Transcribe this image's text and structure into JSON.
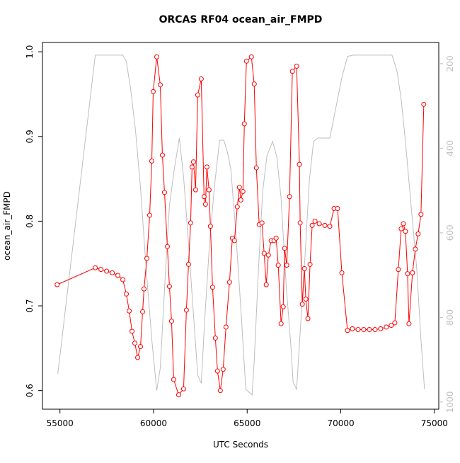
{
  "chart_data": {
    "type": "line",
    "title": "ORCAS RF04 ocean_air_FMPD",
    "x_label": "UTC Seconds",
    "y_label": "ocean_air_FMPD",
    "xlim": [
      54066,
      75234
    ],
    "xticks": [
      55000,
      60000,
      65000,
      70000,
      75000
    ],
    "ylim": [
      0.578,
      1.011
    ],
    "yticks": [
      0.6,
      0.7,
      0.8,
      0.9,
      {
        "value": 1,
        "label": "1.0"
      }
    ],
    "y2lim": [
      1017,
      150
    ],
    "y2ticks": [
      200,
      400,
      600,
      800,
      1000
    ],
    "series": [
      {
        "color": "#ff0000",
        "marker": "circle",
        "x": [
          54850,
          56887,
          57189,
          57491,
          57792,
          58094,
          58358,
          58547,
          58698,
          58849,
          59000,
          59151,
          59302,
          59415,
          59491,
          59642,
          59792,
          59906,
          59981,
          60170,
          60358,
          60472,
          60585,
          60736,
          60849,
          60962,
          61075,
          61340,
          61604,
          61755,
          61868,
          61981,
          62057,
          62132,
          62245,
          62358,
          62547,
          62698,
          62774,
          62849,
          62962,
          63038,
          63151,
          63302,
          63415,
          63566,
          63717,
          63868,
          64057,
          64208,
          64321,
          64472,
          64585,
          64660,
          64774,
          64849,
          64962,
          65226,
          65377,
          65491,
          65642,
          65792,
          65906,
          66019,
          66132,
          66283,
          66434,
          66547,
          66660,
          66811,
          66925,
          67000,
          67113,
          67264,
          67415,
          67642,
          67792,
          67830,
          67943,
          68057,
          68132,
          68245,
          68358,
          68472,
          68623,
          68849,
          69151,
          69415,
          69642,
          69830,
          70057,
          70358,
          70623,
          70925,
          71226,
          71528,
          71830,
          72132,
          72434,
          72698,
          72887,
          73075,
          73226,
          73340,
          73453,
          73566,
          73642,
          73830,
          73981,
          74132,
          74283,
          74434
        ],
        "values": [
          0.725,
          0.745,
          0.743,
          0.741,
          0.739,
          0.736,
          0.731,
          0.714,
          0.694,
          0.67,
          0.656,
          0.639,
          0.652,
          0.693,
          0.72,
          0.756,
          0.807,
          0.871,
          0.953,
          0.994,
          0.961,
          0.878,
          0.834,
          0.77,
          0.723,
          0.682,
          0.613,
          0.595,
          0.602,
          0.695,
          0.749,
          0.798,
          0.864,
          0.87,
          0.837,
          0.949,
          0.968,
          0.829,
          0.82,
          0.864,
          0.837,
          0.794,
          0.722,
          0.662,
          0.623,
          0.6,
          0.625,
          0.675,
          0.728,
          0.78,
          0.777,
          0.817,
          0.84,
          0.825,
          0.835,
          0.915,
          0.989,
          0.994,
          0.962,
          0.863,
          0.796,
          0.798,
          0.762,
          0.725,
          0.76,
          0.777,
          0.777,
          0.78,
          0.748,
          0.679,
          0.699,
          0.768,
          0.748,
          0.829,
          0.977,
          0.983,
          0.867,
          0.798,
          0.702,
          0.744,
          0.708,
          0.685,
          0.749,
          0.795,
          0.8,
          0.797,
          0.795,
          0.794,
          0.815,
          0.815,
          0.739,
          0.671,
          0.673,
          0.672,
          0.672,
          0.672,
          0.672,
          0.673,
          0.675,
          0.677,
          0.68,
          0.743,
          0.791,
          0.797,
          0.788,
          0.738,
          0.679,
          0.739,
          0.767,
          0.785,
          0.808,
          0.938
        ]
      },
      {
        "color": "#bebebe",
        "axis": "y2",
        "x": [
          54887,
          56887,
          58358,
          58547,
          58774,
          59038,
          59302,
          59604,
          59906,
          60170,
          60358,
          60623,
          60849,
          61113,
          61377,
          61604,
          61830,
          62094,
          62358,
          62547,
          62736,
          63000,
          63264,
          63528,
          63755,
          63943,
          64132,
          64396,
          64698,
          64925,
          65264,
          65377,
          65604,
          65830,
          66057,
          66358,
          66585,
          66811,
          67075,
          67340,
          67453,
          67642,
          67830,
          68094,
          68321,
          68547,
          68774,
          69075,
          69415,
          69679,
          70057,
          70358,
          70660,
          72736,
          73000,
          73226,
          73453,
          73755,
          74057,
          74283,
          74472
        ],
        "values": [
          933,
          180,
          180,
          195,
          259,
          359,
          493,
          685,
          853,
          973,
          920,
          702,
          535,
          448,
          376,
          468,
          602,
          769,
          936,
          956,
          803,
          618,
          485,
          381,
          381,
          409,
          451,
          602,
          803,
          970,
          983,
          903,
          685,
          501,
          418,
          384,
          421,
          518,
          719,
          870,
          953,
          970,
          836,
          652,
          476,
          384,
          376,
          376,
          376,
          317,
          233,
          183,
          180,
          180,
          217,
          284,
          384,
          535,
          685,
          853,
          970
        ]
      }
    ]
  }
}
